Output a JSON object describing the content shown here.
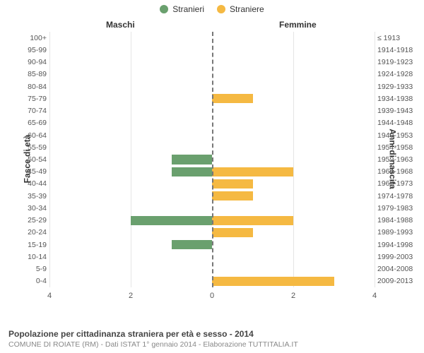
{
  "legend": {
    "male": {
      "label": "Stranieri",
      "color": "#6aa06e"
    },
    "female": {
      "label": "Straniere",
      "color": "#f5b942"
    }
  },
  "headers": {
    "left": "Maschi",
    "right": "Femmine"
  },
  "y_left_title": "Fasce di età",
  "y_right_title": "Anni di nascita",
  "x_ticks": [
    "4",
    "2",
    "0",
    "2",
    "4"
  ],
  "x_max": 4,
  "grid_color": "#e5e5e5",
  "center_line_color": "#777777",
  "background_color": "#ffffff",
  "rows": [
    {
      "age": "100+",
      "birth": "≤ 1913",
      "m": 0,
      "f": 0
    },
    {
      "age": "95-99",
      "birth": "1914-1918",
      "m": 0,
      "f": 0
    },
    {
      "age": "90-94",
      "birth": "1919-1923",
      "m": 0,
      "f": 0
    },
    {
      "age": "85-89",
      "birth": "1924-1928",
      "m": 0,
      "f": 0
    },
    {
      "age": "80-84",
      "birth": "1929-1933",
      "m": 0,
      "f": 0
    },
    {
      "age": "75-79",
      "birth": "1934-1938",
      "m": 0,
      "f": 1
    },
    {
      "age": "70-74",
      "birth": "1939-1943",
      "m": 0,
      "f": 0
    },
    {
      "age": "65-69",
      "birth": "1944-1948",
      "m": 0,
      "f": 0
    },
    {
      "age": "60-64",
      "birth": "1949-1953",
      "m": 0,
      "f": 0
    },
    {
      "age": "55-59",
      "birth": "1954-1958",
      "m": 0,
      "f": 0
    },
    {
      "age": "50-54",
      "birth": "1959-1963",
      "m": 1,
      "f": 0
    },
    {
      "age": "45-49",
      "birth": "1964-1968",
      "m": 1,
      "f": 2
    },
    {
      "age": "40-44",
      "birth": "1969-1973",
      "m": 0,
      "f": 1
    },
    {
      "age": "35-39",
      "birth": "1974-1978",
      "m": 0,
      "f": 1
    },
    {
      "age": "30-34",
      "birth": "1979-1983",
      "m": 0,
      "f": 0
    },
    {
      "age": "25-29",
      "birth": "1984-1988",
      "m": 2,
      "f": 2
    },
    {
      "age": "20-24",
      "birth": "1989-1993",
      "m": 0,
      "f": 1
    },
    {
      "age": "15-19",
      "birth": "1994-1998",
      "m": 1,
      "f": 0
    },
    {
      "age": "10-14",
      "birth": "1999-2003",
      "m": 0,
      "f": 0
    },
    {
      "age": "5-9",
      "birth": "2004-2008",
      "m": 0,
      "f": 0
    },
    {
      "age": "0-4",
      "birth": "2009-2013",
      "m": 0,
      "f": 3
    }
  ],
  "footer": {
    "title": "Popolazione per cittadinanza straniera per età e sesso - 2014",
    "sub": "COMUNE DI ROIATE (RM) - Dati ISTAT 1° gennaio 2014 - Elaborazione TUTTITALIA.IT"
  }
}
